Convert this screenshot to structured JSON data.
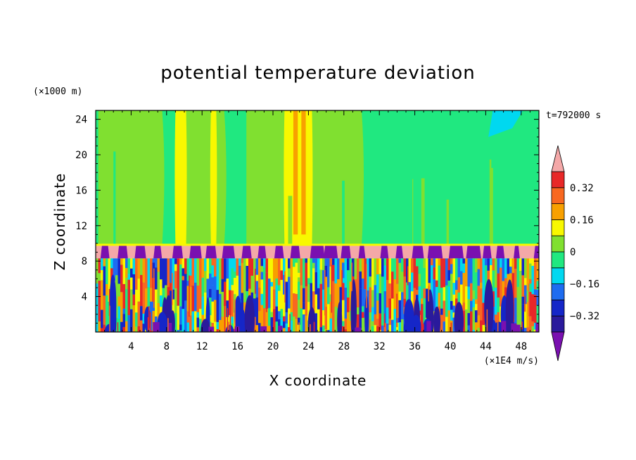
{
  "colors": {
    "band_below_minus_0_40": "#7a10b0",
    "band_minus_0_40_minus_0_32": "#2a1a9c",
    "band_minus_0_32_minus_0_24": "#1526c8",
    "band_minus_0_24_minus_0_16": "#1e6cf0",
    "band_minus_0_16_minus_0_08": "#00d8f0",
    "band_minus_0_08_0": "#20e880",
    "band_0_0_08": "#80e030",
    "band_0_08_0_16": "#f8f800",
    "band_0_16_0_24": "#f8a000",
    "band_0_24_0_32": "#f86820",
    "band_0_32_0_40": "#e82828",
    "band_above_0_40": "#f4a8a8"
  },
  "chart_data": {
    "type": "heatmap",
    "title": "potential temperature deviation",
    "xlabel": "X coordinate",
    "ylabel": "Z coordinate",
    "x_unit_label": "(×1E4 m/s)",
    "y_unit_label": "(×1000 m)",
    "timestamp": "t=792000 s",
    "xlim": [
      0,
      50
    ],
    "ylim": [
      0,
      25
    ],
    "x_ticks": [
      4,
      8,
      12,
      16,
      20,
      24,
      28,
      32,
      36,
      40,
      44,
      48
    ],
    "y_ticks": [
      4,
      8,
      12,
      16,
      20,
      24
    ],
    "colorbar": {
      "levels": [
        -0.4,
        -0.32,
        -0.24,
        -0.16,
        -0.08,
        0,
        0.08,
        0.16,
        0.24,
        0.32,
        0.4
      ],
      "tick_values": [
        -0.32,
        -0.16,
        0,
        0.16,
        0.32
      ],
      "tick_labels": [
        "−0.32",
        "−0.16",
        "0",
        "0.16",
        "0.32"
      ],
      "extend": "both"
    },
    "layers": [
      {
        "z_range": [
          9.8,
          25
        ],
        "description_value": 0.04
      },
      {
        "z_range": [
          8.3,
          9.8
        ],
        "description_value": 0.45
      },
      {
        "z_range": [
          0,
          8.3
        ],
        "description_value": 0.0
      }
    ]
  }
}
